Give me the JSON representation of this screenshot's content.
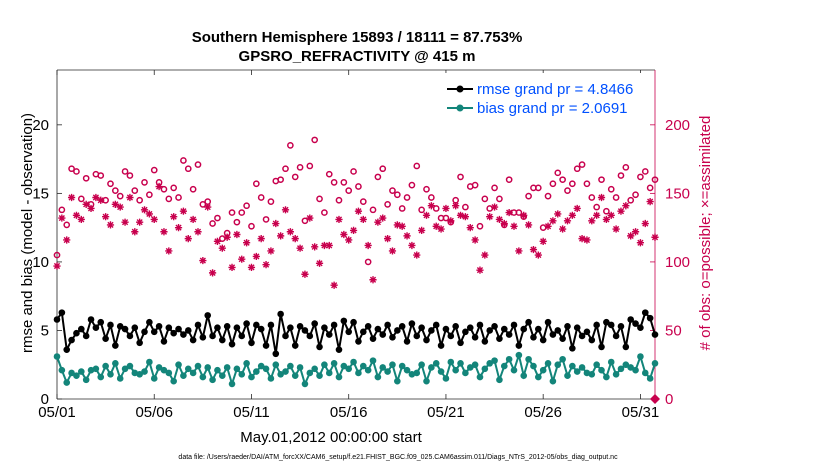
{
  "chart_data": {
    "type": "line",
    "title": "Southern Hemisphere 15893 / 18111 = 87.753%",
    "subtitle": "GPSRO_REFRACTIVITY @ 415 m",
    "xlabel": "May.01,2012 00:00:00 start",
    "ylabel": "rmse and bias (model - observation)",
    "ylabel_right": "# of obs: o=possible; ×=assimilated",
    "footnote": "data file: /Users/raeder/DAI/ATM_forcXX/CAM6_setup/f.e21.FHIST_BGC.f09_025.CAM6assim.011/Diags_NTrS_2012-05/obs_diag_output.nc",
    "x_ticks": [
      "05/01",
      "05/06",
      "05/11",
      "05/16",
      "05/21",
      "05/26",
      "05/31"
    ],
    "x_tick_days": [
      0,
      5,
      10,
      15,
      20,
      25,
      30
    ],
    "xlim_days": [
      0,
      30.75
    ],
    "y_ticks": [
      0,
      5,
      10,
      15,
      20
    ],
    "ylim": [
      0,
      24
    ],
    "y2_ticks": [
      0,
      50,
      100,
      150,
      200
    ],
    "ylim_right": [
      0,
      240
    ],
    "grid": false,
    "legend_position": "top-right",
    "x_days": [
      0.0,
      0.25,
      0.5,
      0.75,
      1.0,
      1.25,
      1.5,
      1.75,
      2.0,
      2.25,
      2.5,
      2.75,
      3.0,
      3.25,
      3.5,
      3.75,
      4.0,
      4.25,
      4.5,
      4.75,
      5.0,
      5.25,
      5.5,
      5.75,
      6.0,
      6.25,
      6.5,
      6.75,
      7.0,
      7.25,
      7.5,
      7.75,
      8.0,
      8.25,
      8.5,
      8.75,
      9.0,
      9.25,
      9.5,
      9.75,
      10.0,
      10.25,
      10.5,
      10.75,
      11.0,
      11.25,
      11.5,
      11.75,
      12.0,
      12.25,
      12.5,
      12.75,
      13.0,
      13.25,
      13.5,
      13.75,
      14.0,
      14.25,
      14.5,
      14.75,
      15.0,
      15.25,
      15.5,
      15.75,
      16.0,
      16.25,
      16.5,
      16.75,
      17.0,
      17.25,
      17.5,
      17.75,
      18.0,
      18.25,
      18.5,
      18.75,
      19.0,
      19.25,
      19.5,
      19.75,
      20.0,
      20.25,
      20.5,
      20.75,
      21.0,
      21.25,
      21.5,
      21.75,
      22.0,
      22.25,
      22.5,
      22.75,
      23.0,
      23.25,
      23.5,
      23.75,
      24.0,
      24.25,
      24.5,
      24.75,
      25.0,
      25.25,
      25.5,
      25.75,
      26.0,
      26.25,
      26.5,
      26.75,
      27.0,
      27.25,
      27.5,
      27.75,
      28.0,
      28.25,
      28.5,
      28.75,
      29.0,
      29.25,
      29.5,
      29.75,
      30.0,
      30.25,
      30.5,
      30.75
    ],
    "series": [
      {
        "name": "rmse grand pr = 4.8466",
        "axis": "left",
        "color": "#000000",
        "marker": "filled-circle",
        "line": true,
        "values": [
          5.8,
          6.3,
          3.6,
          4.3,
          4.8,
          5.1,
          4.6,
          5.8,
          5.2,
          5.6,
          4.4,
          5.4,
          3.9,
          5.3,
          5.1,
          4.6,
          5.2,
          4.1,
          4.9,
          5.6,
          4.9,
          5.3,
          4.2,
          5.2,
          4.8,
          5.1,
          4.7,
          5.0,
          4.3,
          5.4,
          4.5,
          6.1,
          4.6,
          5.2,
          4.3,
          5.3,
          4.0,
          5.2,
          4.6,
          5.5,
          4.1,
          5.4,
          5.1,
          3.9,
          5.4,
          3.3,
          6.2,
          4.6,
          5.2,
          3.9,
          5.3,
          5.0,
          4.6,
          5.5,
          3.8,
          5.2,
          4.7,
          5.4,
          3.6,
          5.7,
          4.9,
          5.6,
          4.2,
          4.9,
          5.3,
          4.4,
          5.1,
          4.7,
          5.4,
          4.5,
          5.0,
          5.3,
          4.2,
          5.5,
          4.6,
          5.2,
          4.3,
          5.0,
          5.4,
          3.9,
          5.1,
          4.6,
          5.3,
          4.1,
          4.9,
          5.2,
          4.5,
          5.4,
          4.2,
          5.0,
          5.3,
          4.4,
          5.1,
          4.7,
          5.4,
          3.9,
          5.1,
          5.6,
          4.5,
          5.1,
          4.3,
          5.6,
          4.7,
          5.0,
          4.4,
          5.3,
          3.7,
          5.2,
          4.6,
          4.9,
          4.3,
          5.4,
          3.8,
          5.6,
          5.4,
          4.6,
          5.3,
          3.8,
          5.8,
          5.5,
          5.2,
          6.3,
          5.9,
          4.7
        ]
      },
      {
        "name": "bias grand pr = 2.0691",
        "axis": "left",
        "color": "#13857a",
        "marker": "filled-circle",
        "line": true,
        "values": [
          3.1,
          2.1,
          1.2,
          1.9,
          1.7,
          2.0,
          1.4,
          2.1,
          2.2,
          1.6,
          2.4,
          1.8,
          2.6,
          1.5,
          2.2,
          2.4,
          1.9,
          1.8,
          2.0,
          2.7,
          1.5,
          2.3,
          2.1,
          1.9,
          1.3,
          2.5,
          1.7,
          2.2,
          1.9,
          2.4,
          1.6,
          2.3,
          1.4,
          2.1,
          1.7,
          2.3,
          1.1,
          2.2,
          1.8,
          2.6,
          1.6,
          2.0,
          2.4,
          2.2,
          1.5,
          2.5,
          1.8,
          2.0,
          2.4,
          1.7,
          2.3,
          1.1,
          1.9,
          2.2,
          1.7,
          2.5,
          1.9,
          2.6,
          1.6,
          2.4,
          2.2,
          2.7,
          1.9,
          2.4,
          2.1,
          2.8,
          1.6,
          2.3,
          2.0,
          2.5,
          1.3,
          2.4,
          2.1,
          1.8,
          1.9,
          2.5,
          1.3,
          2.3,
          2.6,
          2.0,
          1.5,
          2.7,
          2.1,
          2.6,
          1.9,
          2.3,
          2.5,
          1.6,
          2.2,
          2.6,
          2.8,
          1.4,
          2.4,
          2.9,
          2.1,
          3.2,
          1.7,
          2.9,
          2.4,
          1.6,
          2.1,
          2.6,
          1.3,
          2.5,
          2.9,
          1.7,
          2.4,
          2.0,
          2.3,
          1.9,
          1.8,
          2.5,
          2.1,
          1.6,
          2.7,
          1.8,
          2.2,
          2.5,
          2.3,
          2.1,
          3.1,
          1.9,
          1.5,
          2.6
        ]
      },
      {
        "name": "possible",
        "axis": "right",
        "color": "#c8004d",
        "marker": "open-circle",
        "line": false,
        "values": [
          105,
          138,
          127,
          168,
          166,
          146,
          161,
          142,
          164,
          163,
          145,
          157,
          152,
          148,
          166,
          163,
          152,
          145,
          158,
          149,
          167,
          158,
          153,
          146,
          154,
          147,
          174,
          168,
          153,
          171,
          142,
          144,
          128,
          132,
          117,
          121,
          136,
          129,
          136,
          141,
          126,
          157,
          147,
          131,
          144,
          159,
          160,
          168,
          185,
          162,
          169,
          130,
          170,
          189,
          146,
          136,
          164,
          158,
          145,
          158,
          152,
          166,
          155,
          144,
          100,
          138,
          162,
          168,
          142,
          152,
          149,
          139,
          147,
          156,
          170,
          138,
          153,
          147,
          139,
          132,
          132,
          129,
          145,
          162,
          140,
          155,
          156,
          126,
          146,
          139,
          154,
          146,
          127,
          160,
          136,
          136,
          133,
          148,
          154,
          154,
          125,
          148,
          157,
          165,
          160,
          152,
          157,
          168,
          171,
          157,
          147,
          140,
          160,
          137,
          153,
          147,
          163,
          169,
          145,
          149,
          162,
          166,
          154,
          160
        ]
      },
      {
        "name": "assimilated",
        "axis": "right",
        "color": "#c8004d",
        "marker": "asterisk",
        "line": false,
        "values": [
          97,
          132,
          116,
          147,
          134,
          131,
          142,
          139,
          147,
          145,
          133,
          127,
          142,
          140,
          129,
          147,
          122,
          129,
          138,
          135,
          131,
          155,
          122,
          108,
          133,
          125,
          137,
          117,
          131,
          122,
          101,
          140,
          92,
          115,
          110,
          118,
          96,
          120,
          102,
          114,
          96,
          104,
          117,
          98,
          108,
          128,
          119,
          138,
          122,
          117,
          110,
          91,
          132,
          111,
          99,
          112,
          112,
          83,
          131,
          120,
          116,
          123,
          137,
          131,
          112,
          87,
          129,
          132,
          117,
          108,
          127,
          126,
          119,
          112,
          105,
          123,
          134,
          141,
          126,
          124,
          139,
          130,
          141,
          134,
          133,
          125,
          116,
          94,
          105,
          133,
          140,
          131,
          128,
          136,
          126,
          108,
          134,
          127,
          109,
          105,
          115,
          126,
          130,
          135,
          124,
          130,
          134,
          139,
          117,
          116,
          130,
          134,
          147,
          131,
          134,
          124,
          137,
          141,
          119,
          122,
          114,
          128,
          144,
          118
        ]
      }
    ]
  }
}
